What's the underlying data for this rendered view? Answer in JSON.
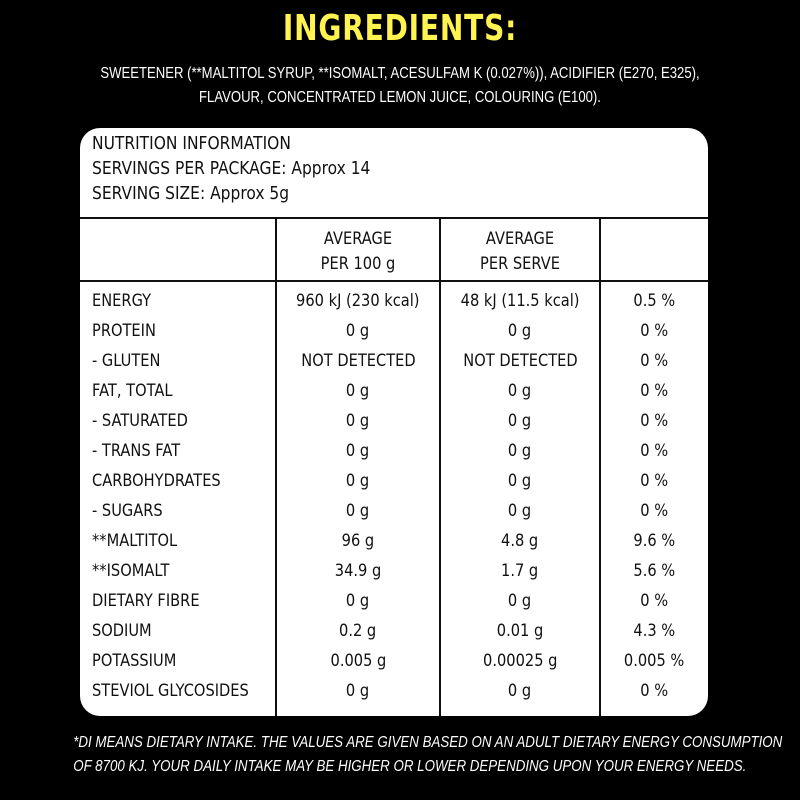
{
  "title": "INGREDIENTS:",
  "ingredients": {
    "line1": "SWEETENER (**MALTITOL SYRUP, **ISOMALT, ACESULFAM K (0.027%)), ACIDIFIER (E270, E325),",
    "line2": "FLAVOUR, CONCENTRATED LEMON JUICE, COLOURING (E100)."
  },
  "panel": {
    "heading": "NUTRITION INFORMATION",
    "servings": "SERVINGS PER PACKAGE: Approx 14",
    "serving_size": "SERVING SIZE: Approx 5g",
    "columns": [
      {
        "line1": "AVERAGE",
        "line2": "PER 100 g"
      },
      {
        "line1": "AVERAGE",
        "line2": "PER SERVE"
      }
    ],
    "rows": [
      {
        "name": "ENERGY",
        "per100": "960 kJ (230 kcal)",
        "perServe": "48 kJ (11.5 kcal)",
        "di": "0.5 %"
      },
      {
        "name": "PROTEIN",
        "per100": "0 g",
        "perServe": "0 g",
        "di": "0 %"
      },
      {
        "name": "- GLUTEN",
        "per100": "NOT DETECTED",
        "perServe": "NOT DETECTED",
        "di": "0 %"
      },
      {
        "name": "FAT, TOTAL",
        "per100": "0 g",
        "perServe": "0 g",
        "di": "0 %"
      },
      {
        "name": "- SATURATED",
        "per100": "0 g",
        "perServe": "0 g",
        "di": "0 %"
      },
      {
        "name": "- TRANS FAT",
        "per100": "0 g",
        "perServe": "0 g",
        "di": "0 %"
      },
      {
        "name": "CARBOHYDRATES",
        "per100": "0 g",
        "perServe": "0 g",
        "di": "0 %"
      },
      {
        "name": "- SUGARS",
        "per100": "0 g",
        "perServe": "0 g",
        "di": "0 %"
      },
      {
        "name": "**MALTITOL",
        "per100": "96 g",
        "perServe": "4.8 g",
        "di": "9.6 %"
      },
      {
        "name": "**ISOMALT",
        "per100": "34.9 g",
        "perServe": "1.7 g",
        "di": "5.6 %"
      },
      {
        "name": "DIETARY FIBRE",
        "per100": "0 g",
        "perServe": "0 g",
        "di": "0 %"
      },
      {
        "name": "SODIUM",
        "per100": "0.2 g",
        "perServe": "0.01 g",
        "di": "4.3 %"
      },
      {
        "name": "POTASSIUM",
        "per100": "0.005 g",
        "perServe": "0.00025 g",
        "di": "0.005 %"
      },
      {
        "name": "STEVIOL GLYCOSIDES",
        "per100": "0 g",
        "perServe": "0 g",
        "di": "0 %"
      }
    ]
  },
  "footnote": {
    "line1": "*DI MEANS DIETARY INTAKE. THE VALUES ARE GIVEN BASED ON AN ADULT DIETARY ENERGY CONSUMPTION",
    "line2": "OF 8700 KJ. YOUR DAILY INTAKE MAY BE HIGHER OR LOWER DEPENDING UPON YOUR ENERGY NEEDS."
  },
  "colors": {
    "background": "#000000",
    "title": "#fff44f",
    "panel": "#ffffff",
    "text": "#111111"
  }
}
